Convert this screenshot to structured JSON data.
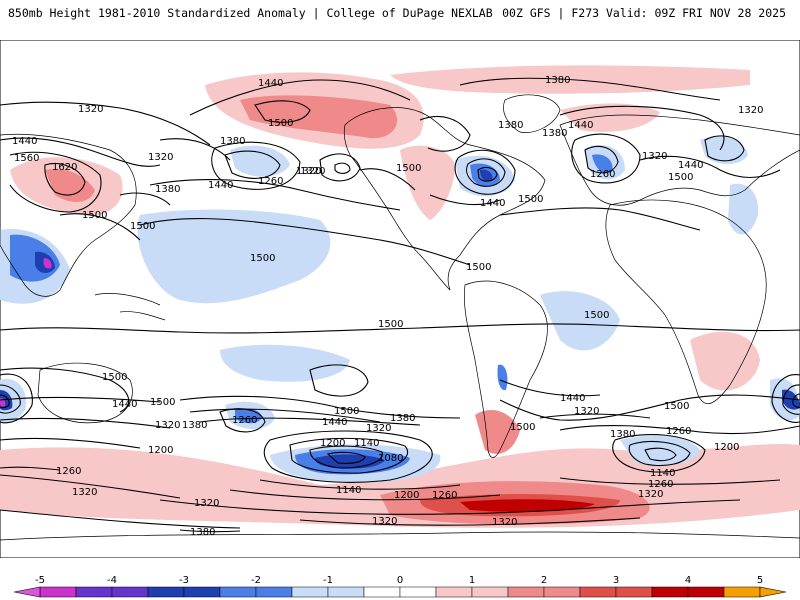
{
  "header": {
    "left": "850mb Height 1981-2010 Standardized Anomaly | College of DuPage NEXLAB",
    "right": "00Z GFS | F273 Valid: 09Z FRI NOV 28 2025"
  },
  "colors": {
    "ocean": "#ffffff",
    "land_outline": "#000000",
    "anom_neg5": "#cc33cc",
    "anom_neg4": "#6633cc",
    "anom_neg3": "#1f3fb0",
    "anom_neg2": "#4a7fe8",
    "anom_neg1": "#c8dcf8",
    "anom_pos1": "#f8c8c8",
    "anom_pos2": "#f08a8a",
    "anom_pos3": "#e0504a",
    "anom_pos4": "#c00000",
    "anom_pos5": "#f5a000"
  },
  "colorbar": {
    "ticks": [
      "-5",
      "-4",
      "-3",
      "-2",
      "-1",
      "0",
      "1",
      "2",
      "3",
      "4",
      "5"
    ]
  },
  "contour_labels": {
    "l1440_nw": "1440",
    "l1380_top": "1380",
    "l1320_tl": "1320",
    "l1320_tr": "1320",
    "l1500_ak": "1500",
    "l1380_na": "1380",
    "l1380_gl": "1380",
    "l1440_gl": "1440",
    "l1440_w": "1440",
    "l1560": "1560",
    "l1620": "1620",
    "l1320_pac": "1320",
    "l1380_pac": "1380",
    "l1260_pac": "1260",
    "l1320_pac2": "1320",
    "l1500_us": "1500",
    "l1440_pac": "1440",
    "l1440_us": "1440",
    "l1500_atl": "1500",
    "l1260_eur": "1260",
    "l1320_eur": "1320",
    "l1440_eur": "1440",
    "l1500_eur": "1500",
    "l1500_asia": "1500",
    "l1380_asia": "1380",
    "l1500_asia2": "1500",
    "l1500_npac": "1500",
    "l1500_eq": "1500",
    "l1500_trop": "1500",
    "l1500_satl": "1500",
    "l1500_wpac": "1500",
    "l1500_spac": "1500",
    "l1440_spac": "1440",
    "l1500_sw": "1500",
    "l1320_sw": "1320",
    "l1380_sw": "1380",
    "l1260_sw": "1260",
    "l1200_sw": "1200",
    "l1500_s1": "1500",
    "l1440_s1": "1440",
    "l1380_s1": "1380",
    "l1320_s1": "1320",
    "l1200_s1": "1200",
    "l1140_s1": "1140",
    "l1080_s1": "1080",
    "l1140_s2": "1140",
    "l1200_s2": "1200",
    "l1260_s2": "1260",
    "l1500_sam": "1500",
    "l1440_sam": "1440",
    "l1320_satl": "1320",
    "l1380_sio": "1380",
    "l1260_sio": "1260",
    "l1200_sio": "1200",
    "l1140_sio": "1140",
    "l1260_sio2": "1260",
    "l1320_sio": "1320",
    "l1500_sio": "1500",
    "l1260_far": "1260",
    "l1320_far": "1320",
    "l1320_bot": "1320",
    "l1380_bot": "1380",
    "l1320_bot2": "1320"
  }
}
